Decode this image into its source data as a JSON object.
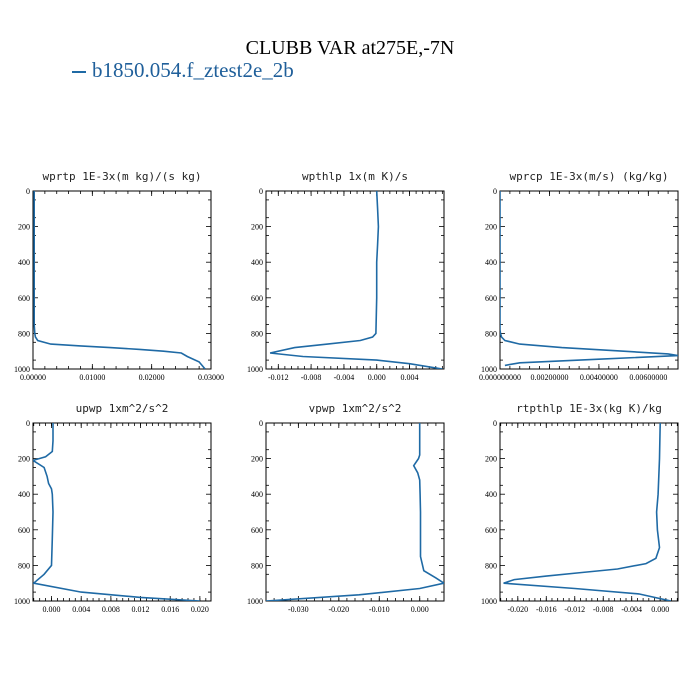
{
  "title": "CLUBB VAR at275E,-7N",
  "legend": {
    "label": "b1850.054.f_ztest2e_2b",
    "color": "#1f6aa5"
  },
  "chart_data": [
    {
      "type": "line",
      "title": "wprtp  1E-3x(m kg)/(s kg)",
      "xlim": [
        0,
        0.03
      ],
      "ylim": [
        1000,
        0
      ],
      "xticks": [
        0,
        0.01,
        0.02,
        0.03
      ],
      "xtick_labels": [
        "0.00000",
        "0.01000",
        "0.02000",
        "0.03000"
      ],
      "yticks": [
        0,
        200,
        400,
        600,
        800,
        1000
      ],
      "ytick_labels": [
        "0",
        "200",
        "400",
        "600",
        "800",
        "1000"
      ],
      "series": [
        {
          "x": [
            0.0002,
            0.0002,
            0.0002,
            0.0002,
            0.0002,
            0.0003,
            0.0004,
            0.0008,
            0.003,
            0.008,
            0.013,
            0.018,
            0.022,
            0.025,
            0.026,
            0.028,
            0.029
          ],
          "y": [
            0,
            200,
            400,
            600,
            750,
            800,
            820,
            840,
            860,
            870,
            880,
            890,
            900,
            910,
            930,
            960,
            1000
          ]
        }
      ]
    },
    {
      "type": "line",
      "title": "wpthlp  1x(m K)/s",
      "xlim": [
        -0.0135,
        0.0082
      ],
      "ylim": [
        1000,
        0
      ],
      "xticks": [
        -0.012,
        -0.008,
        -0.004,
        0.0,
        0.004
      ],
      "xtick_labels": [
        "-0.012",
        "-0.008",
        "-0.004",
        "0.000",
        "0.004"
      ],
      "yticks": [
        0,
        200,
        400,
        600,
        800,
        1000
      ],
      "ytick_labels": [
        "0",
        "200",
        "400",
        "600",
        "800",
        "1000"
      ],
      "series": [
        {
          "x": [
            0.0,
            0.0001,
            0.0002,
            0.0001,
            0.0,
            0.0,
            -0.0001,
            -0.0005,
            -0.002,
            -0.006,
            -0.01,
            -0.013,
            -0.009,
            0.0,
            0.004,
            0.008
          ],
          "y": [
            0,
            100,
            200,
            300,
            400,
            600,
            800,
            820,
            840,
            860,
            880,
            910,
            930,
            950,
            970,
            1000
          ]
        }
      ]
    },
    {
      "type": "line",
      "title": "wprcp  1E-3x(m/s) (kg/kg)",
      "xlim": [
        0,
        0.0072
      ],
      "ylim": [
        1000,
        0
      ],
      "xticks": [
        0,
        0.002,
        0.004,
        0.006
      ],
      "xtick_labels": [
        "0.000000000",
        "0.00200000",
        "0.00400000",
        "0.00600000"
      ],
      "yticks": [
        0,
        200,
        400,
        600,
        800,
        1000
      ],
      "ytick_labels": [
        "0",
        "200",
        "400",
        "600",
        "800",
        "1000"
      ],
      "series": [
        {
          "x": [
            0.0,
            0.0,
            0.0,
            0.0,
            0.0,
            2e-05,
            6e-05,
            0.0002,
            0.0008,
            0.0025,
            0.005,
            0.0068,
            0.0072,
            0.004,
            0.0008,
            0.0002
          ],
          "y": [
            0,
            200,
            400,
            600,
            780,
            800,
            820,
            840,
            860,
            880,
            900,
            915,
            925,
            945,
            965,
            980
          ]
        }
      ]
    },
    {
      "type": "line",
      "title": "upwp  1xm^2/s^2",
      "xlim": [
        -0.0025,
        0.0215
      ],
      "ylim": [
        1000,
        0
      ],
      "xticks": [
        0.0,
        0.004,
        0.008,
        0.012,
        0.016,
        0.02
      ],
      "xtick_labels": [
        "0.000",
        "0.004",
        "0.008",
        "0.012",
        "0.016",
        "0.020"
      ],
      "yticks": [
        0,
        200,
        400,
        600,
        800,
        1000
      ],
      "ytick_labels": [
        "0",
        "200",
        "400",
        "600",
        "800",
        "1000"
      ],
      "series": [
        {
          "x": [
            0.0002,
            0.0002,
            0.0001,
            -0.0008,
            -0.0025,
            -0.001,
            -0.0006,
            -0.0004,
            0.0,
            0.0001,
            0.0002,
            0.0001,
            0.0,
            -0.001,
            -0.0024,
            0.004,
            0.012,
            0.02
          ],
          "y": [
            0,
            100,
            160,
            190,
            210,
            250,
            300,
            340,
            370,
            400,
            500,
            650,
            800,
            850,
            900,
            950,
            980,
            1000
          ]
        }
      ]
    },
    {
      "type": "line",
      "title": "vpwp  1xm^2/s^2",
      "xlim": [
        -0.038,
        0.006
      ],
      "ylim": [
        1000,
        0
      ],
      "xticks": [
        -0.03,
        -0.02,
        -0.01,
        0.0
      ],
      "xtick_labels": [
        "-0.030",
        "-0.020",
        "-0.010",
        "0.000"
      ],
      "yticks": [
        0,
        200,
        400,
        600,
        800,
        1000
      ],
      "ytick_labels": [
        "0",
        "200",
        "400",
        "600",
        "800",
        "1000"
      ],
      "series": [
        {
          "x": [
            0.0,
            0.0,
            0.0,
            -0.0003,
            -0.0015,
            -0.0005,
            0.0,
            0.0001,
            0.0002,
            0.0002,
            0.001,
            0.004,
            0.006,
            0.0,
            -0.015,
            -0.038
          ],
          "y": [
            0,
            100,
            180,
            200,
            240,
            280,
            320,
            400,
            500,
            750,
            830,
            870,
            900,
            930,
            965,
            1000
          ]
        }
      ]
    },
    {
      "type": "line",
      "title": "rtpthlp  1E-3x(kg K)/kg",
      "xlim": [
        -0.0225,
        0.0025
      ],
      "ylim": [
        1000,
        0
      ],
      "xticks": [
        -0.02,
        -0.016,
        -0.012,
        -0.008,
        -0.004,
        0.0
      ],
      "xtick_labels": [
        "-0.020",
        "-0.016",
        "-0.012",
        "-0.008",
        "-0.004",
        "0.000"
      ],
      "yticks": [
        0,
        200,
        400,
        600,
        800,
        1000
      ],
      "ytick_labels": [
        "0",
        "200",
        "400",
        "600",
        "800",
        "1000"
      ],
      "series": [
        {
          "x": [
            0.0,
            -0.0001,
            -0.0003,
            -0.0005,
            -0.0004,
            -0.0001,
            -0.0006,
            -0.002,
            -0.006,
            -0.011,
            -0.016,
            -0.0205,
            -0.022,
            -0.012,
            -0.003,
            0.0015
          ],
          "y": [
            0,
            200,
            400,
            500,
            600,
            700,
            760,
            790,
            820,
            840,
            860,
            880,
            900,
            930,
            960,
            1000
          ]
        }
      ]
    }
  ]
}
